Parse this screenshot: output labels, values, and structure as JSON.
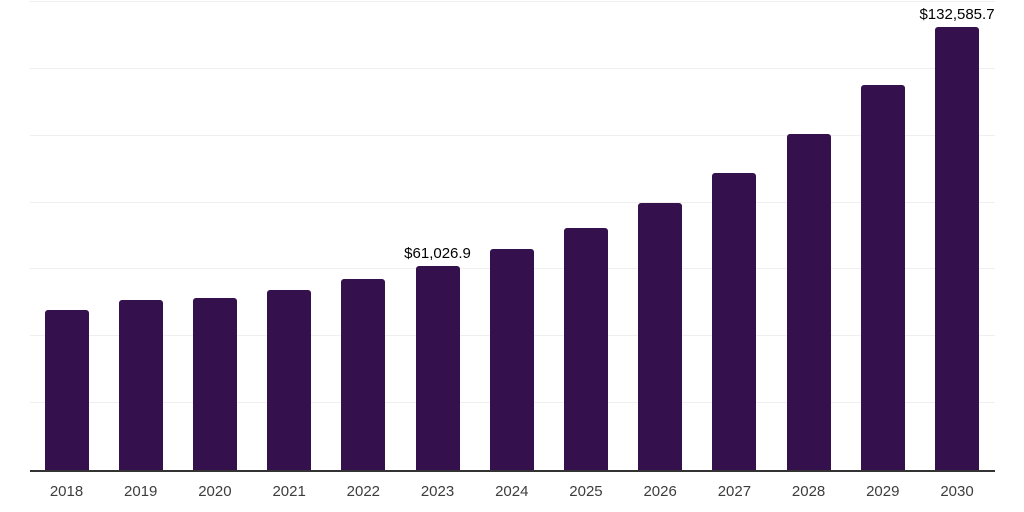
{
  "chart_data": {
    "type": "bar",
    "title": "",
    "xlabel": "",
    "ylabel": "",
    "legend": "none",
    "grid": "horizontal",
    "y_axis_tick_labels_visible": false,
    "ylim": [
      0,
      140000
    ],
    "gridline_step": 20000,
    "categories": [
      "2018",
      "2019",
      "2020",
      "2021",
      "2022",
      "2023",
      "2024",
      "2025",
      "2026",
      "2027",
      "2028",
      "2029",
      "2030"
    ],
    "values": [
      47900,
      51000,
      51500,
      53900,
      57100,
      61026.9,
      66100,
      72400,
      79900,
      88800,
      100500,
      115200,
      132585.7
    ],
    "bar_labels": [
      "",
      "",
      "",
      "",
      "",
      "$61,026.9",
      "",
      "",
      "",
      "",
      "",
      "",
      "$132,585.7"
    ],
    "colors": {
      "bar": "#34114C",
      "axis_line": "#333333",
      "gridline": "#efefef",
      "x_tick_label": "#3d3d3d",
      "data_label": "#000000",
      "background": "#ffffff"
    }
  }
}
